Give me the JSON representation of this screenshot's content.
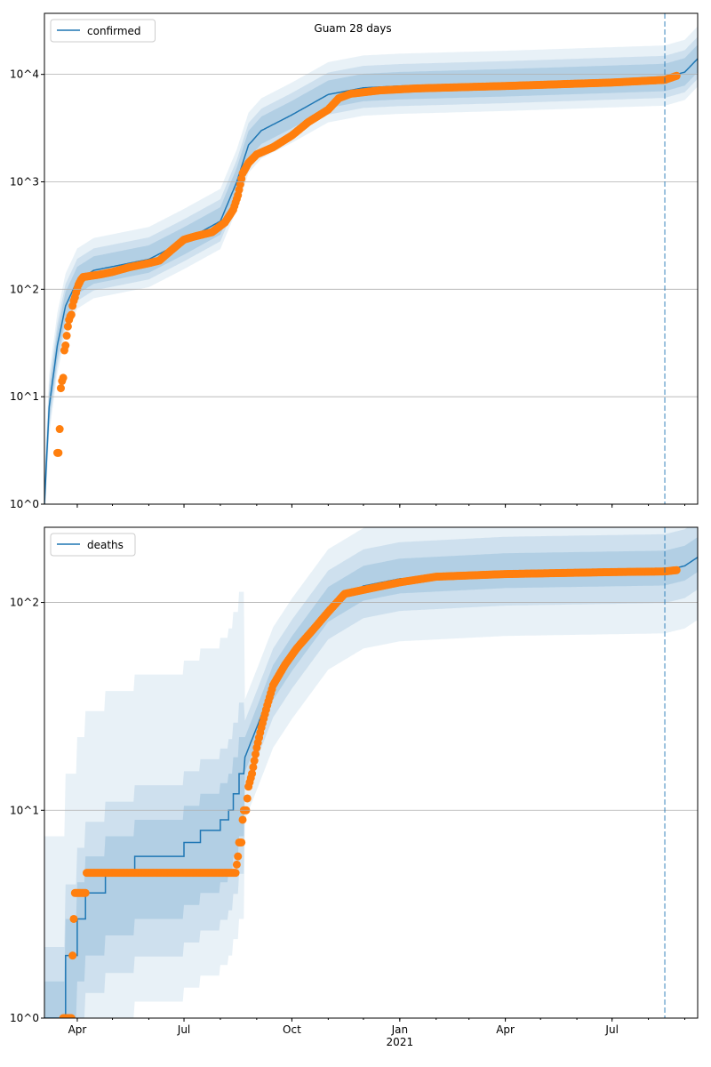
{
  "title": "Guam 28 days",
  "colors": {
    "line": "#1f77b4",
    "observed": "#ff7f0e",
    "band": "#1f77b4",
    "grid": "#b0b0b0"
  },
  "chart_data": [
    {
      "type": "line",
      "name": "confirmed",
      "title": "Guam 28 days",
      "legend": "confirmed",
      "legend_position": "top-left",
      "yscale": "log",
      "ylim": [
        1,
        37000
      ],
      "xlim": [
        "2020-03-04",
        "2021-09-12"
      ],
      "grid": "y-major",
      "yticks": [
        {
          "v": 1,
          "label": "10^0"
        },
        {
          "v": 10,
          "label": "10^1"
        },
        {
          "v": 100,
          "label": "10^2"
        },
        {
          "v": 1000,
          "label": "10^3"
        },
        {
          "v": 10000,
          "label": "10^4"
        }
      ],
      "forecast_start": "2021-08-15",
      "model": [
        [
          "2020-03-04",
          1
        ],
        [
          "2020-03-08",
          8
        ],
        [
          "2020-03-15",
          30
        ],
        [
          "2020-03-22",
          70
        ],
        [
          "2020-04-01",
          120
        ],
        [
          "2020-04-15",
          150
        ],
        [
          "2020-06-01",
          190
        ],
        [
          "2020-07-01",
          280
        ],
        [
          "2020-08-01",
          430
        ],
        [
          "2020-08-15",
          1000
        ],
        [
          "2020-08-25",
          2200
        ],
        [
          "2020-09-05",
          3000
        ],
        [
          "2020-10-01",
          4200
        ],
        [
          "2020-11-01",
          6500
        ],
        [
          "2020-12-01",
          7500
        ],
        [
          "2021-01-01",
          7800
        ],
        [
          "2021-04-01",
          8300
        ],
        [
          "2021-08-15",
          9300
        ],
        [
          "2021-09-01",
          10500
        ],
        [
          "2021-09-12",
          14000
        ]
      ],
      "bands": [
        [
          0.75,
          1.35
        ],
        [
          0.65,
          1.6
        ],
        [
          0.55,
          2.0
        ]
      ],
      "observed": [
        [
          "2020-03-15",
          3
        ],
        [
          "2020-03-16",
          3
        ],
        [
          "2020-03-17",
          5
        ],
        [
          "2020-03-18",
          12
        ],
        [
          "2020-03-19",
          14
        ],
        [
          "2020-03-20",
          15
        ],
        [
          "2020-03-21",
          27
        ],
        [
          "2020-03-22",
          30
        ],
        [
          "2020-03-23",
          37
        ],
        [
          "2020-03-24",
          45
        ],
        [
          "2020-03-25",
          52
        ],
        [
          "2020-03-26",
          56
        ],
        [
          "2020-03-27",
          58
        ],
        [
          "2020-03-28",
          70
        ],
        [
          "2020-03-29",
          78
        ],
        [
          "2020-03-30",
          84
        ],
        [
          "2020-03-31",
          93
        ],
        [
          "2020-04-02",
          110
        ],
        [
          "2020-04-04",
          122
        ],
        [
          "2020-04-06",
          130
        ],
        [
          "2020-04-20",
          137
        ],
        [
          "2020-05-01",
          145
        ],
        [
          "2020-05-15",
          160
        ],
        [
          "2020-06-01",
          175
        ],
        [
          "2020-06-10",
          185
        ],
        [
          "2020-06-20",
          230
        ],
        [
          "2020-07-01",
          290
        ],
        [
          "2020-07-10",
          310
        ],
        [
          "2020-07-25",
          340
        ],
        [
          "2020-08-05",
          420
        ],
        [
          "2020-08-12",
          550
        ],
        [
          "2020-08-16",
          750
        ],
        [
          "2020-08-20",
          1200
        ],
        [
          "2020-08-25",
          1500
        ],
        [
          "2020-09-01",
          1800
        ],
        [
          "2020-09-15",
          2100
        ],
        [
          "2020-10-01",
          2700
        ],
        [
          "2020-10-15",
          3600
        ],
        [
          "2020-11-01",
          4700
        ],
        [
          "2020-11-10",
          6000
        ],
        [
          "2020-11-20",
          6600
        ],
        [
          "2020-12-15",
          7100
        ],
        [
          "2021-01-15",
          7400
        ],
        [
          "2021-04-01",
          7800
        ],
        [
          "2021-07-01",
          8400
        ],
        [
          "2021-08-15",
          8900
        ],
        [
          "2021-08-25",
          9700
        ]
      ]
    },
    {
      "type": "line",
      "name": "deaths",
      "legend": "deaths",
      "legend_position": "top-left",
      "yscale": "log",
      "ylim": [
        1,
        230
      ],
      "xlim": [
        "2020-03-04",
        "2021-09-12"
      ],
      "grid": "y-major",
      "yticks": [
        {
          "v": 1,
          "label": "10^0"
        },
        {
          "v": 10,
          "label": "10^1"
        },
        {
          "v": 100,
          "label": "10^2"
        }
      ],
      "xticks": [
        {
          "d": "2020-04-01",
          "label": "Apr"
        },
        {
          "d": "2020-07-01",
          "label": "Jul"
        },
        {
          "d": "2020-10-01",
          "label": "Oct"
        },
        {
          "d": "2021-01-01",
          "label": "Jan",
          "sub": "2021"
        },
        {
          "d": "2021-04-01",
          "label": "Apr"
        },
        {
          "d": "2021-07-01",
          "label": "Jul"
        }
      ],
      "forecast_start": "2021-08-15",
      "model_step": [
        [
          "2020-03-04",
          1
        ],
        [
          "2020-03-22",
          2
        ],
        [
          "2020-04-01",
          3
        ],
        [
          "2020-04-08",
          4
        ],
        [
          "2020-04-25",
          5
        ],
        [
          "2020-05-20",
          6
        ],
        [
          "2020-07-01",
          7
        ],
        [
          "2020-07-15",
          8
        ],
        [
          "2020-08-01",
          9
        ],
        [
          "2020-08-08",
          10
        ],
        [
          "2020-08-12",
          12
        ],
        [
          "2020-08-17",
          15
        ],
        [
          "2020-08-22",
          18
        ]
      ],
      "model": [
        [
          "2020-08-22",
          18
        ],
        [
          "2020-09-01",
          25
        ],
        [
          "2020-09-15",
          40
        ],
        [
          "2020-10-01",
          55
        ],
        [
          "2020-11-01",
          95
        ],
        [
          "2020-12-01",
          120
        ],
        [
          "2021-01-01",
          130
        ],
        [
          "2021-04-01",
          138
        ],
        [
          "2021-08-15",
          142
        ],
        [
          "2021-09-01",
          150
        ],
        [
          "2021-09-12",
          165
        ]
      ],
      "bands": [
        [
          0.85,
          1.25
        ],
        [
          0.7,
          1.5
        ],
        [
          0.5,
          1.9
        ]
      ],
      "early_bands": [
        [
          0.5,
          1.5
        ],
        [
          0.33,
          2.2
        ],
        [
          0.2,
          7.5
        ]
      ],
      "observed": [
        [
          "2020-03-20",
          1
        ],
        [
          "2020-03-22",
          1
        ],
        [
          "2020-03-24",
          1
        ],
        [
          "2020-03-26",
          1
        ],
        [
          "2020-03-27",
          1
        ],
        [
          "2020-03-28",
          2
        ],
        [
          "2020-03-29",
          3
        ],
        [
          "2020-03-30",
          4
        ],
        [
          "2020-04-02",
          4
        ],
        [
          "2020-04-05",
          4
        ],
        [
          "2020-04-08",
          4
        ],
        [
          "2020-04-09",
          5
        ],
        [
          "2020-05-01",
          5
        ],
        [
          "2020-06-01",
          5
        ],
        [
          "2020-07-01",
          5
        ],
        [
          "2020-08-01",
          5
        ],
        [
          "2020-08-14",
          5
        ],
        [
          "2020-08-16",
          6
        ],
        [
          "2020-08-17",
          7
        ],
        [
          "2020-08-19",
          7
        ],
        [
          "2020-08-20",
          9
        ],
        [
          "2020-08-21",
          10
        ],
        [
          "2020-08-23",
          10
        ],
        [
          "2020-08-25",
          13
        ],
        [
          "2020-08-28",
          15
        ],
        [
          "2020-09-01",
          20
        ],
        [
          "2020-09-05",
          25
        ],
        [
          "2020-09-10",
          32
        ],
        [
          "2020-09-15",
          40
        ],
        [
          "2020-09-25",
          50
        ],
        [
          "2020-10-05",
          60
        ],
        [
          "2020-10-20",
          75
        ],
        [
          "2020-11-01",
          90
        ],
        [
          "2020-11-15",
          110
        ],
        [
          "2020-12-01",
          115
        ],
        [
          "2021-01-01",
          125
        ],
        [
          "2021-02-01",
          133
        ],
        [
          "2021-04-01",
          137
        ],
        [
          "2021-07-01",
          140
        ],
        [
          "2021-08-15",
          141
        ],
        [
          "2021-08-25",
          143
        ]
      ]
    }
  ]
}
